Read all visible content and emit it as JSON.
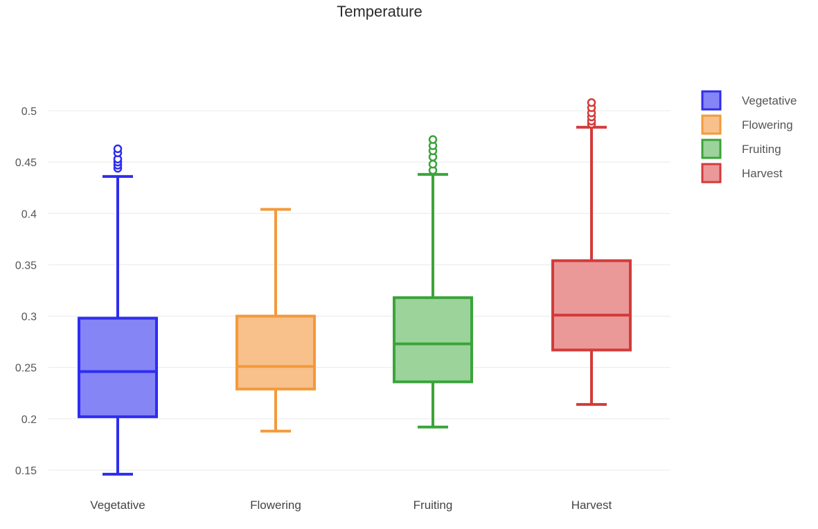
{
  "chart_data": {
    "type": "box",
    "title": "Temperature",
    "xlabel": "",
    "ylabel": "",
    "ylim": [
      0.14,
      0.52
    ],
    "yticks": [
      "0.15",
      "0.2",
      "0.25",
      "0.3",
      "0.35",
      "0.4",
      "0.45",
      "0.5"
    ],
    "grid": true,
    "legend_position": "right",
    "categories": [
      "Vegetative",
      "Flowering",
      "Fruiting",
      "Harvest"
    ],
    "series": [
      {
        "name": "Vegetative",
        "color": "#2d2df0",
        "fill": "#8585f5",
        "min": 0.146,
        "q1": 0.202,
        "median": 0.246,
        "q3": 0.298,
        "max": 0.436,
        "outliers": [
          0.444,
          0.447,
          0.45,
          0.453,
          0.459,
          0.463
        ]
      },
      {
        "name": "Flowering",
        "color": "#f39a3a",
        "fill": "#f8c08a",
        "min": 0.188,
        "q1": 0.229,
        "median": 0.251,
        "q3": 0.3,
        "max": 0.404,
        "outliers": []
      },
      {
        "name": "Fruiting",
        "color": "#3aa43a",
        "fill": "#9bd39b",
        "min": 0.192,
        "q1": 0.236,
        "median": 0.273,
        "q3": 0.318,
        "max": 0.438,
        "outliers": [
          0.442,
          0.448,
          0.455,
          0.461,
          0.466,
          0.472
        ]
      },
      {
        "name": "Harvest",
        "color": "#d33a3a",
        "fill": "#eb9898",
        "min": 0.214,
        "q1": 0.267,
        "median": 0.301,
        "q3": 0.354,
        "max": 0.484,
        "outliers": [
          0.487,
          0.49,
          0.494,
          0.498,
          0.503,
          0.508
        ]
      }
    ]
  }
}
